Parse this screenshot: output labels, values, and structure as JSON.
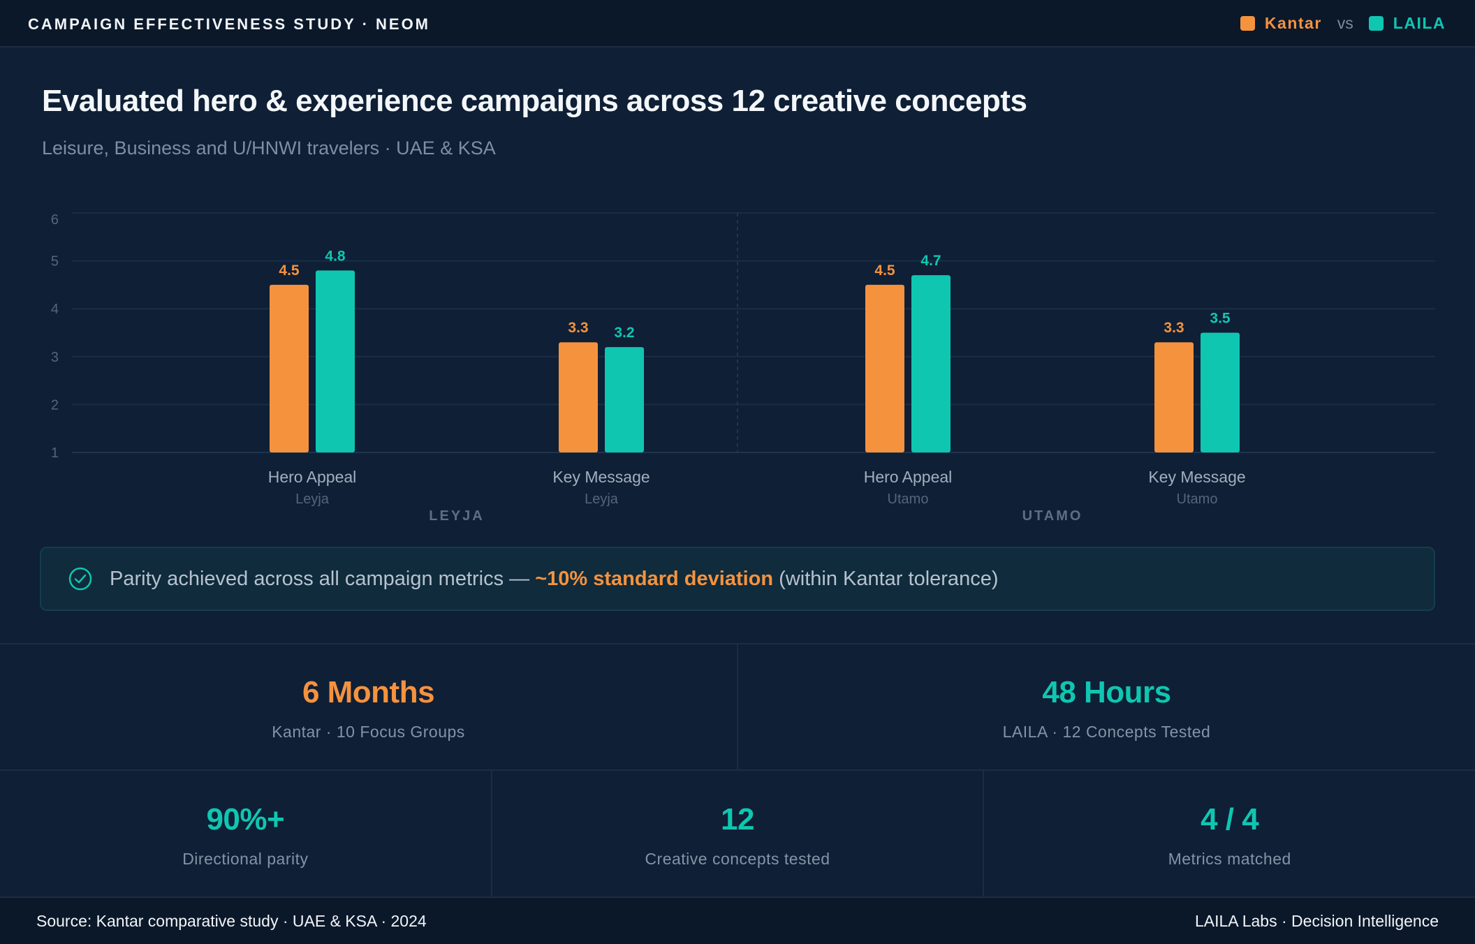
{
  "header": {
    "brand": "CAMPAIGN EFFECTIVENESS STUDY · NEOM",
    "legend": {
      "kantar": "Kantar",
      "vs": "vs",
      "laila": "LAILA"
    }
  },
  "title": "Evaluated hero & experience campaigns across 12 creative concepts",
  "subtitle": "Leisure, Business and U/HNWI travelers · UAE & KSA",
  "colors": {
    "kantar": "#f5923e",
    "laila": "#0fc6b1",
    "background": "#0f1f35"
  },
  "chart_data": {
    "type": "bar",
    "ylim": [
      1,
      6
    ],
    "yticks": [
      "1",
      "2",
      "3",
      "4",
      "5",
      "6"
    ],
    "groups": [
      {
        "name": "LEYJA",
        "categories": [
          {
            "label": "Hero Appeal",
            "sub": "Leyja",
            "kantar": 4.5,
            "laila": 4.8
          },
          {
            "label": "Key Message",
            "sub": "Leyja",
            "kantar": 3.3,
            "laila": 3.2
          }
        ]
      },
      {
        "name": "UTAMO",
        "categories": [
          {
            "label": "Hero Appeal",
            "sub": "Utamo",
            "kantar": 4.5,
            "laila": 4.7
          },
          {
            "label": "Key Message",
            "sub": "Utamo",
            "kantar": 3.3,
            "laila": 3.5
          }
        ]
      }
    ],
    "series": [
      {
        "name": "Kantar",
        "values": [
          4.5,
          3.3,
          4.5,
          3.3
        ]
      },
      {
        "name": "LAILA",
        "values": [
          4.8,
          3.2,
          4.7,
          3.5
        ]
      }
    ]
  },
  "callout": {
    "prefix": "Parity achieved across all campaign metrics — ",
    "highlight": "~10% standard deviation",
    "suffix": " (within Kantar tolerance)"
  },
  "stats_top": [
    {
      "value": "6 Months",
      "label": "Kantar · 10 Focus Groups"
    },
    {
      "value": "48 Hours",
      "label": "LAILA · 12 Concepts Tested"
    }
  ],
  "stats_bottom": [
    {
      "value": "90%+",
      "label": "Directional parity"
    },
    {
      "value": "12",
      "label": "Creative concepts tested"
    },
    {
      "value": "4 / 4",
      "label": "Metrics matched"
    }
  ],
  "footer": {
    "source": "Source: Kantar comparative study · UAE & KSA · 2024",
    "credit": "LAILA Labs · Decision Intelligence"
  }
}
